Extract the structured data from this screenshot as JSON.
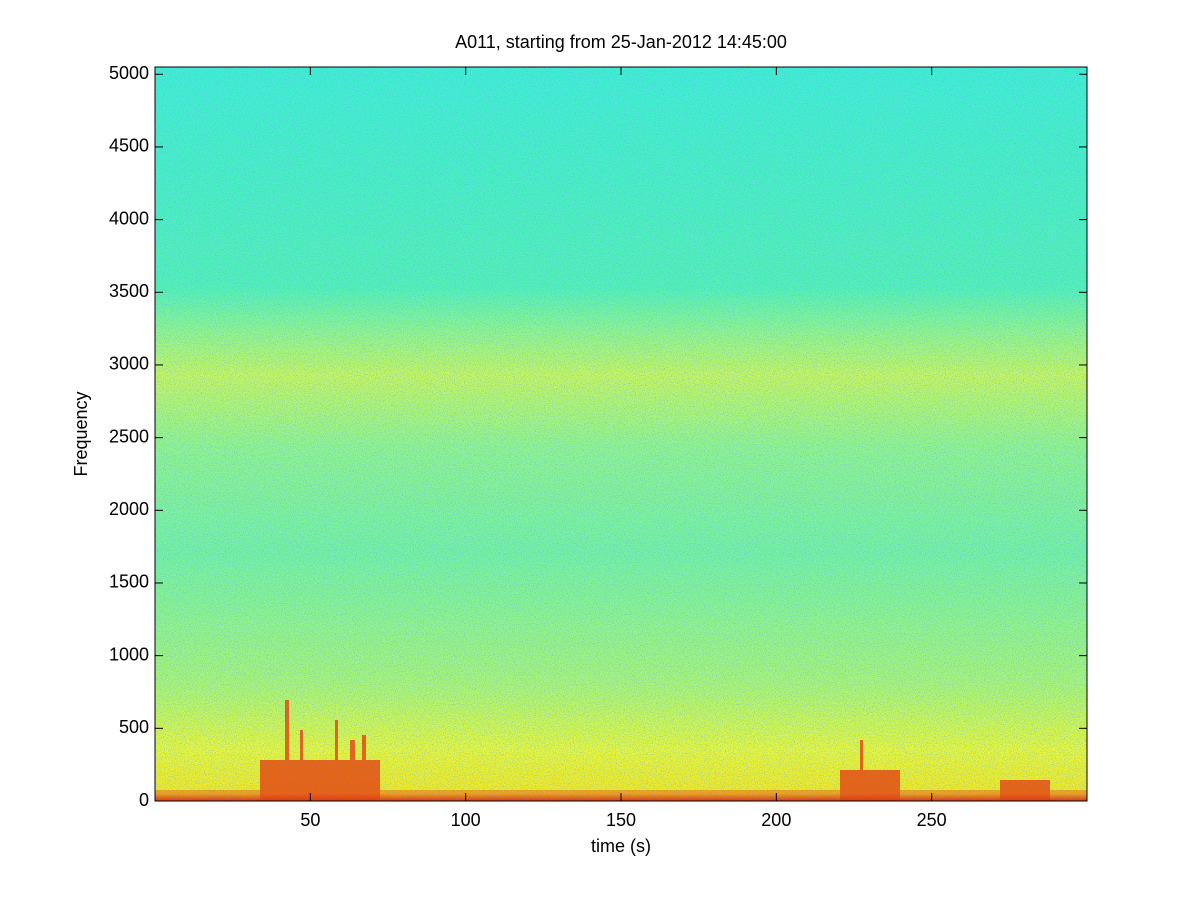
{
  "chart_data": {
    "type": "spectrogram",
    "title": "A011, starting from 25-Jan-2012 14:45:00",
    "x_label": "time (s)",
    "y_label": "Frequency",
    "xlim": [
      0,
      300
    ],
    "xticks": [
      50,
      100,
      150,
      200,
      250
    ],
    "ylim": [
      0,
      5050
    ],
    "yticks": [
      0,
      500,
      1000,
      1500,
      2000,
      2500,
      3000,
      3500,
      4000,
      4500,
      5000
    ],
    "grid": false
  }
}
